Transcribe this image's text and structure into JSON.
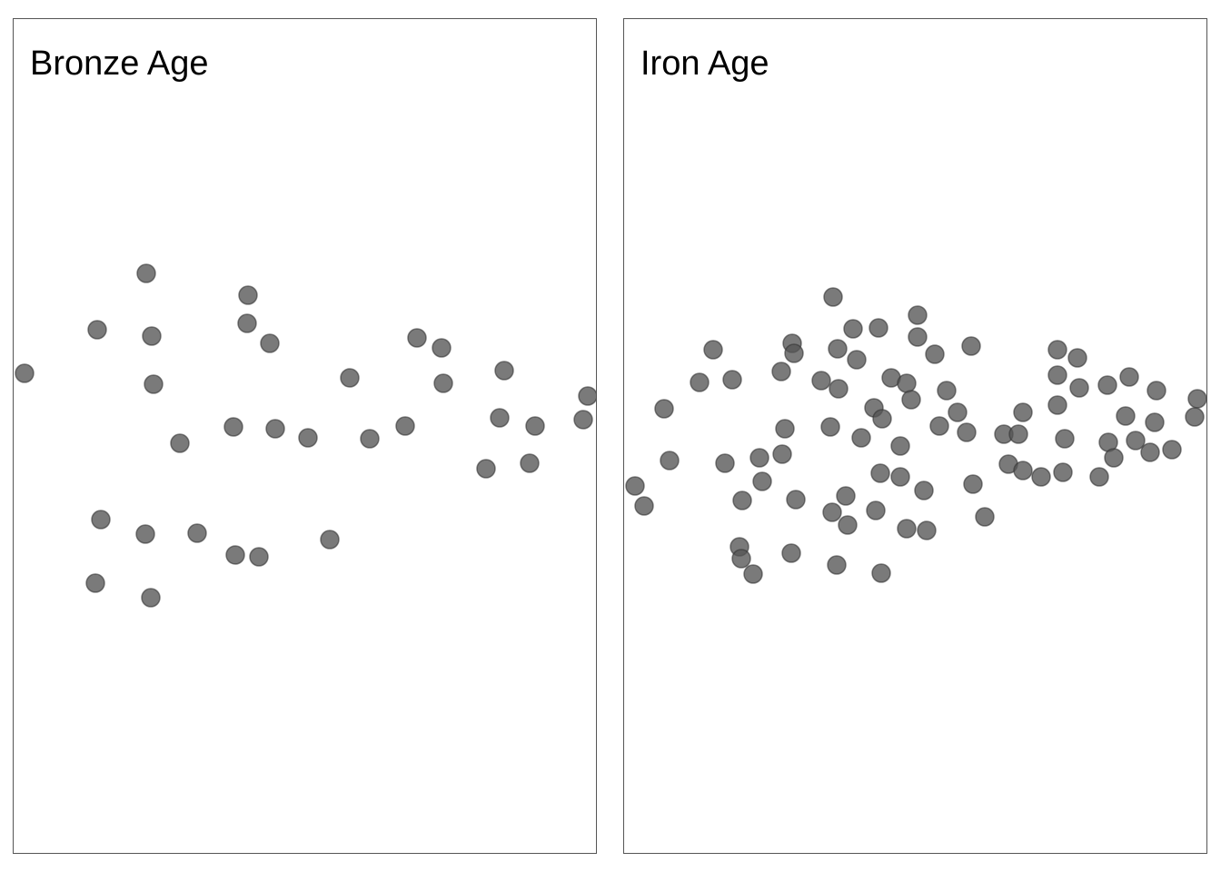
{
  "chart_data": [
    {
      "type": "scatter",
      "title": "Bronze Age",
      "xlim": [
        0,
        643
      ],
      "ylim": [
        0,
        920
      ],
      "grid": false,
      "point_color": "#555555",
      "points": [
        [
          12,
          390
        ],
        [
          92,
          342
        ],
        [
          146,
          280
        ],
        [
          152,
          349
        ],
        [
          154,
          402
        ],
        [
          258,
          304
        ],
        [
          257,
          335
        ],
        [
          282,
          357
        ],
        [
          370,
          395
        ],
        [
          444,
          351
        ],
        [
          471,
          362
        ],
        [
          473,
          401
        ],
        [
          540,
          387
        ],
        [
          632,
          415
        ],
        [
          627,
          441
        ],
        [
          535,
          439
        ],
        [
          574,
          448
        ],
        [
          520,
          495
        ],
        [
          568,
          489
        ],
        [
          242,
          449
        ],
        [
          288,
          451
        ],
        [
          324,
          461
        ],
        [
          183,
          467
        ],
        [
          392,
          462
        ],
        [
          431,
          448
        ],
        [
          96,
          551
        ],
        [
          145,
          567
        ],
        [
          202,
          566
        ],
        [
          244,
          590
        ],
        [
          270,
          592
        ],
        [
          348,
          573
        ],
        [
          90,
          621
        ],
        [
          151,
          637
        ]
      ]
    },
    {
      "type": "scatter",
      "title": "Iron Age",
      "xlim": [
        0,
        643
      ],
      "ylim": [
        0,
        920
      ],
      "grid": false,
      "point_color": "#555555",
      "points": [
        [
          230,
          306
        ],
        [
          252,
          341
        ],
        [
          280,
          340
        ],
        [
          323,
          326
        ],
        [
          323,
          350
        ],
        [
          185,
          357
        ],
        [
          187,
          368
        ],
        [
          235,
          363
        ],
        [
          256,
          375
        ],
        [
          98,
          364
        ],
        [
          83,
          400
        ],
        [
          119,
          397
        ],
        [
          173,
          388
        ],
        [
          217,
          398
        ],
        [
          236,
          407
        ],
        [
          294,
          395
        ],
        [
          311,
          401
        ],
        [
          342,
          369
        ],
        [
          382,
          360
        ],
        [
          316,
          419
        ],
        [
          355,
          409
        ],
        [
          367,
          433
        ],
        [
          44,
          429
        ],
        [
          275,
          428
        ],
        [
          284,
          440
        ],
        [
          177,
          451
        ],
        [
          227,
          449
        ],
        [
          261,
          461
        ],
        [
          304,
          470
        ],
        [
          347,
          448
        ],
        [
          377,
          455
        ],
        [
          418,
          457
        ],
        [
          434,
          457
        ],
        [
          439,
          433
        ],
        [
          477,
          364
        ],
        [
          499,
          373
        ],
        [
          477,
          392
        ],
        [
          501,
          406
        ],
        [
          532,
          403
        ],
        [
          556,
          394
        ],
        [
          586,
          409
        ],
        [
          631,
          418
        ],
        [
          628,
          438
        ],
        [
          584,
          444
        ],
        [
          552,
          437
        ],
        [
          477,
          425
        ],
        [
          485,
          462
        ],
        [
          533,
          466
        ],
        [
          563,
          464
        ],
        [
          539,
          483
        ],
        [
          579,
          477
        ],
        [
          603,
          474
        ],
        [
          50,
          486
        ],
        [
          111,
          489
        ],
        [
          149,
          483
        ],
        [
          174,
          479
        ],
        [
          12,
          514
        ],
        [
          22,
          536
        ],
        [
          130,
          530
        ],
        [
          152,
          509
        ],
        [
          189,
          529
        ],
        [
          282,
          500
        ],
        [
          304,
          504
        ],
        [
          330,
          519
        ],
        [
          384,
          512
        ],
        [
          423,
          490
        ],
        [
          439,
          497
        ],
        [
          459,
          504
        ],
        [
          483,
          499
        ],
        [
          523,
          504
        ],
        [
          244,
          525
        ],
        [
          229,
          543
        ],
        [
          246,
          557
        ],
        [
          277,
          541
        ],
        [
          311,
          561
        ],
        [
          333,
          563
        ],
        [
          397,
          548
        ],
        [
          127,
          581
        ],
        [
          129,
          594
        ],
        [
          142,
          611
        ],
        [
          184,
          588
        ],
        [
          234,
          601
        ],
        [
          283,
          610
        ]
      ]
    }
  ]
}
